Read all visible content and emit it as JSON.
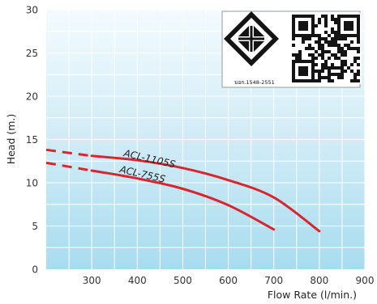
{
  "chart_data": {
    "type": "line",
    "xlabel": "Flow Rate (l/min.)",
    "ylabel": "Head (m.)",
    "xlim": [
      200,
      900
    ],
    "ylim": [
      0,
      30
    ],
    "x_ticks": [
      300,
      400,
      500,
      600,
      700,
      800,
      900
    ],
    "y_ticks": [
      0,
      5,
      10,
      15,
      20,
      25,
      30
    ],
    "grid": true,
    "series": [
      {
        "name": "ACL-1105S",
        "color": "#d8262f",
        "solid": [
          [
            300,
            13.1
          ],
          [
            400,
            12.6
          ],
          [
            500,
            11.7
          ],
          [
            600,
            10.3
          ],
          [
            700,
            8.3
          ],
          [
            800,
            4.4
          ]
        ],
        "dashed": [
          [
            200,
            13.8
          ],
          [
            300,
            13.1
          ]
        ]
      },
      {
        "name": "ACL-755S",
        "color": "#d8262f",
        "solid": [
          [
            300,
            11.4
          ],
          [
            400,
            10.5
          ],
          [
            500,
            9.3
          ],
          [
            600,
            7.4
          ],
          [
            700,
            4.6
          ]
        ],
        "dashed": [
          [
            200,
            12.3
          ],
          [
            300,
            11.4
          ]
        ]
      }
    ]
  },
  "certification": {
    "standard_text": "มอก.1548-2551",
    "logo_icon": "tisi-standard-mark-icon",
    "qr_icon": "qr-code-icon"
  }
}
